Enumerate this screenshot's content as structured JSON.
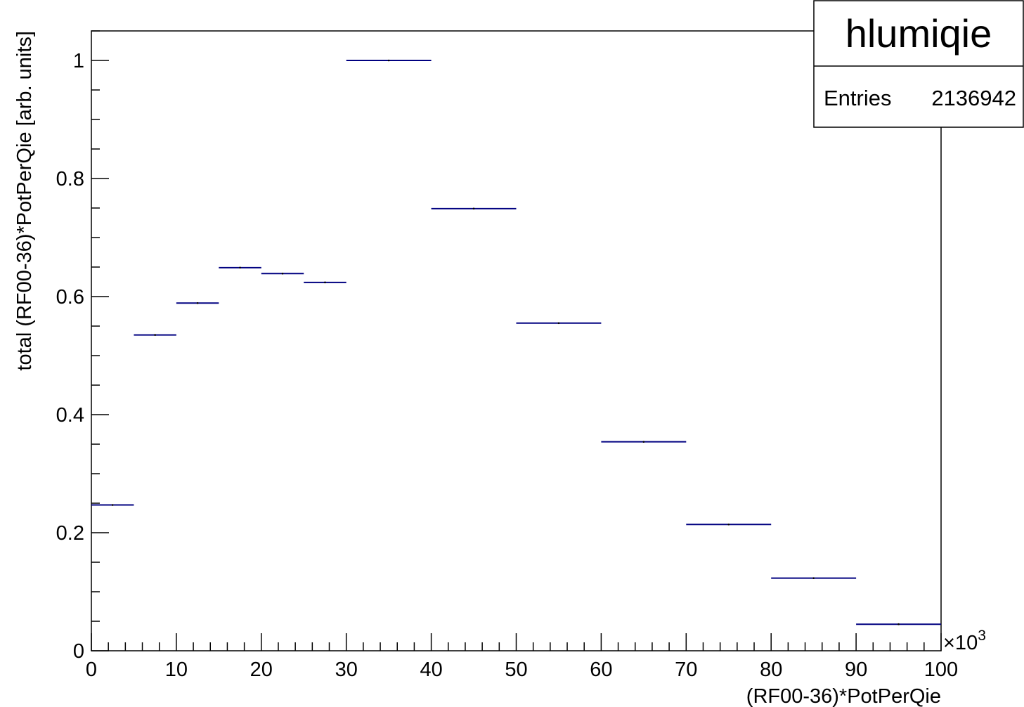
{
  "stats_box": {
    "title": "hlumiqie",
    "entries_label": "Entries",
    "entries_value": "2136942"
  },
  "chart_data": {
    "type": "bar",
    "xlabel": "(RF00-36)*PotPerQie",
    "ylabel": "total (RF00-36)*PotPerQie [arb. units]",
    "x_multiplier": "×10",
    "x_multiplier_exponent": "3",
    "xlim": [
      0,
      100
    ],
    "ylim": [
      0,
      1.05
    ],
    "x_ticks": [
      0,
      10,
      20,
      30,
      40,
      50,
      60,
      70,
      80,
      90,
      100
    ],
    "y_ticks": [
      0,
      0.2,
      0.4,
      0.6,
      0.8,
      1
    ],
    "y_tick_labels": [
      "0",
      "0.2",
      "0.4",
      "0.6",
      "0.8",
      "1"
    ],
    "bins": [
      {
        "x_low": 0,
        "x_high": 5,
        "value": 0.247
      },
      {
        "x_low": 5,
        "x_high": 10,
        "value": 0.535
      },
      {
        "x_low": 10,
        "x_high": 15,
        "value": 0.589
      },
      {
        "x_low": 15,
        "x_high": 20,
        "value": 0.649
      },
      {
        "x_low": 20,
        "x_high": 25,
        "value": 0.639
      },
      {
        "x_low": 25,
        "x_high": 30,
        "value": 0.624
      },
      {
        "x_low": 30,
        "x_high": 40,
        "value": 1.0
      },
      {
        "x_low": 40,
        "x_high": 50,
        "value": 0.749
      },
      {
        "x_low": 50,
        "x_high": 60,
        "value": 0.555
      },
      {
        "x_low": 60,
        "x_high": 70,
        "value": 0.354
      },
      {
        "x_low": 70,
        "x_high": 80,
        "value": 0.214
      },
      {
        "x_low": 80,
        "x_high": 90,
        "value": 0.123
      },
      {
        "x_low": 90,
        "x_high": 100,
        "value": 0.045
      }
    ],
    "marker_color": "#000080",
    "grid": false,
    "legend_placement": "top-right"
  }
}
